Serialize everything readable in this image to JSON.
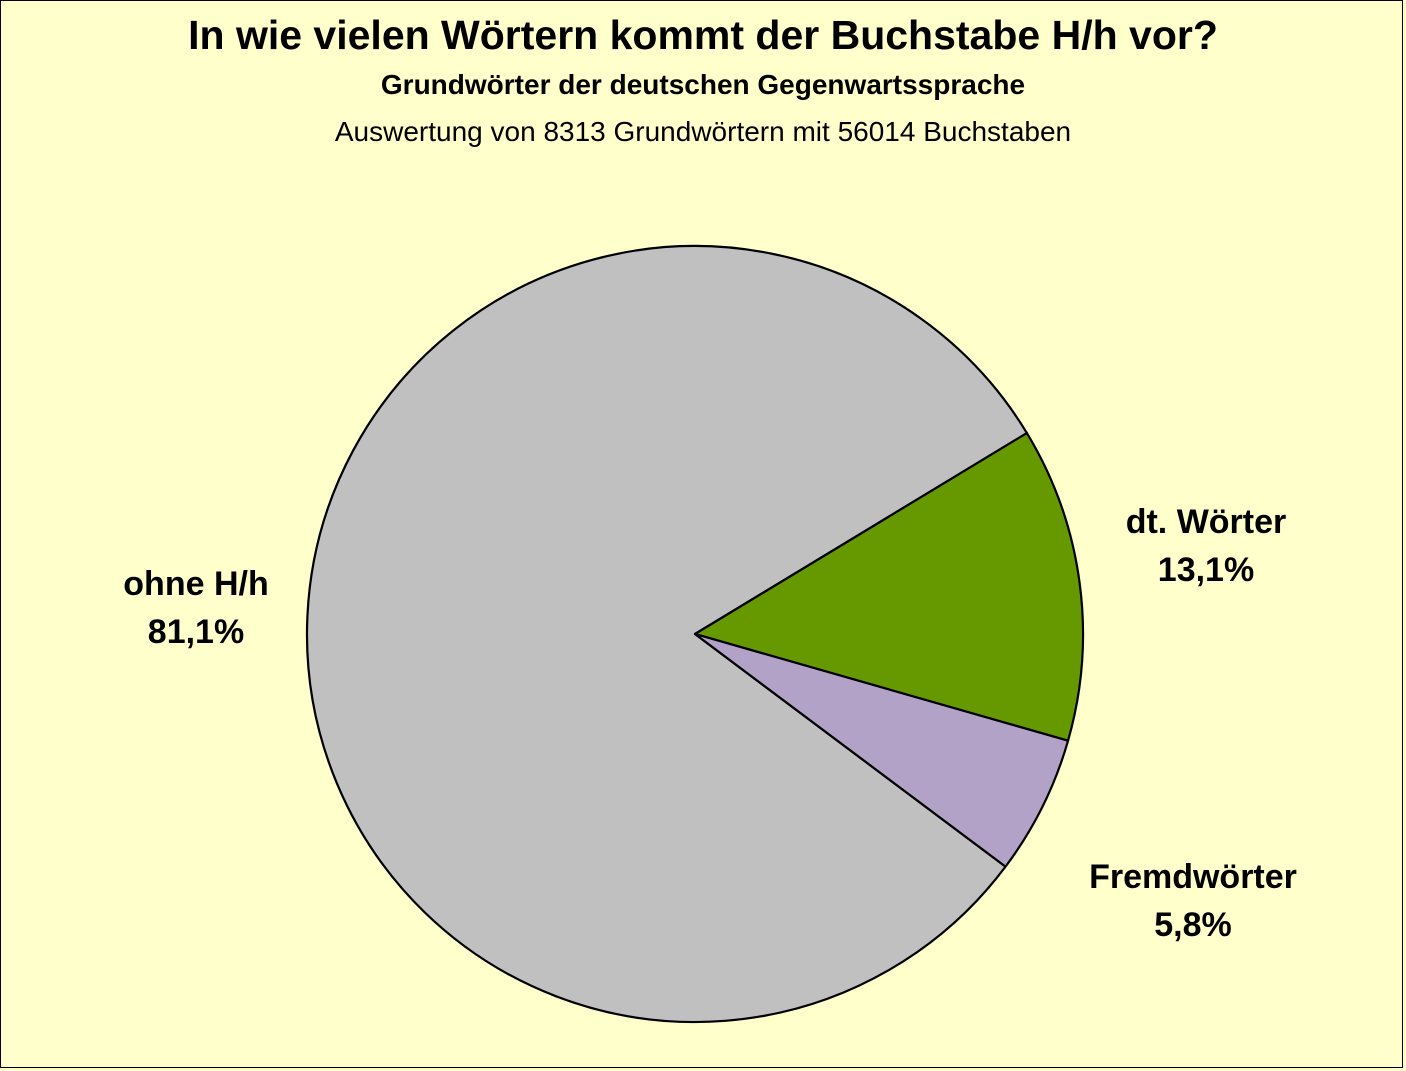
{
  "chart_data": {
    "type": "pie",
    "title": "In wie vielen Wörtern kommt der Buchstabe H/h vor?",
    "subtitle": "Grundwörter der deutschen Gegenwartssprache",
    "note": "Auswertung von 8313 Grundwörtern mit 56014 Buchstaben",
    "slices": [
      {
        "name": "ohne H/h",
        "value": 81.1,
        "label": "81,1%",
        "color": "#c0c0c0"
      },
      {
        "name": "dt. Wörter",
        "value": 13.1,
        "label": "13,1%",
        "color": "#669900"
      },
      {
        "name": "Fremdwörter",
        "value": 5.8,
        "label": "5,8%",
        "color": "#b3a2c7"
      }
    ],
    "background_color": "#ffffcc",
    "legend": "none"
  }
}
